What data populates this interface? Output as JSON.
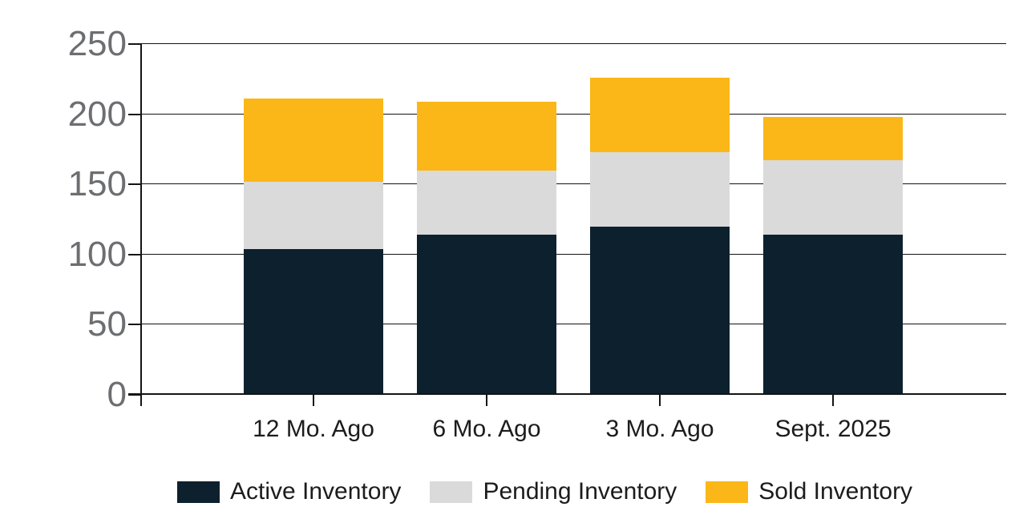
{
  "chart_data": {
    "type": "bar",
    "stacked": true,
    "title": "",
    "categories": [
      "12 Mo. Ago",
      "6 Mo. Ago",
      "3 Mo. Ago",
      "Sept. 2025"
    ],
    "series": [
      {
        "name": "Active Inventory",
        "color": "#0d202e",
        "values": [
          104,
          114,
          120,
          114
        ]
      },
      {
        "name": "Pending Inventory",
        "color": "#dadada",
        "values": [
          48,
          46,
          53,
          53
        ]
      },
      {
        "name": "Sold Inventory",
        "color": "#fbb718",
        "values": [
          59,
          49,
          53,
          31
        ]
      }
    ],
    "ylim": [
      0,
      250
    ],
    "yticks": [
      0,
      50,
      100,
      150,
      200,
      250
    ],
    "xlabel": "",
    "ylabel": "",
    "grid": "horizontal",
    "legend_position": "bottom"
  },
  "colors": {
    "axis": "#141414",
    "y_tick_label": "#6d6e71",
    "category_label": "#1c1c1c",
    "background": "#ffffff"
  }
}
